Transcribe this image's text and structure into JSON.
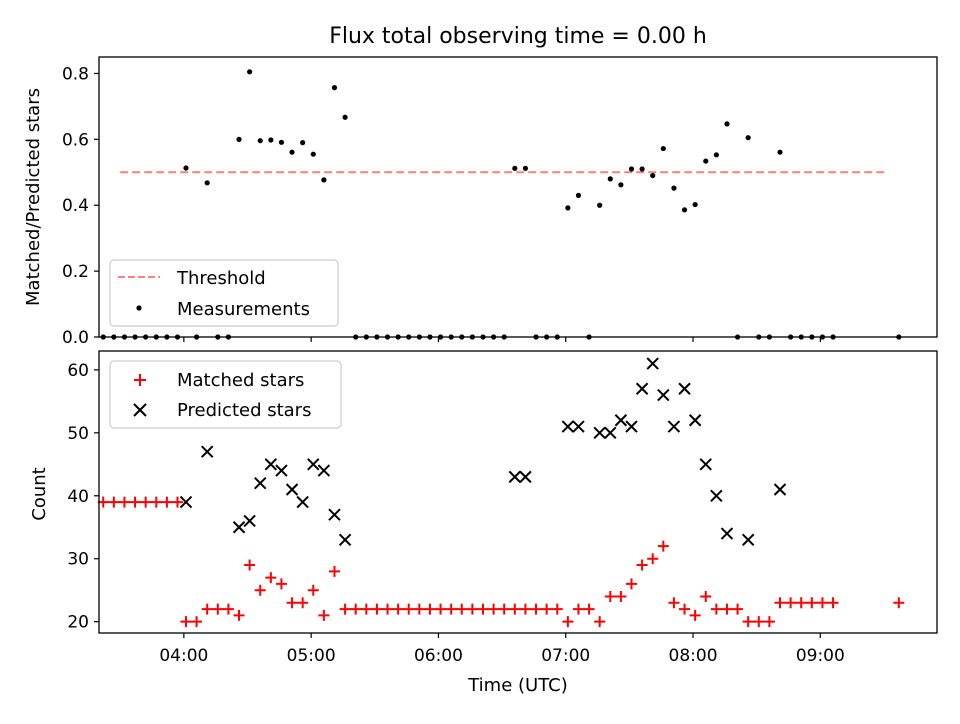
{
  "figure": {
    "title": "Flux total observing time = 0.00 h",
    "xlabel": "Time (UTC)"
  },
  "chart_data": [
    {
      "type": "scatter",
      "panel": "top",
      "ylabel": "Matched/Predicted stars",
      "xlabel": "",
      "xlim": [
        "03:20",
        "09:55"
      ],
      "ylim": [
        0,
        0.85
      ],
      "yticks": [
        0.0,
        0.2,
        0.4,
        0.6,
        0.8
      ],
      "ytick_labels": [
        "0.0",
        "0.2",
        "0.4",
        "0.6",
        "0.8"
      ],
      "xticks": [
        "04:00",
        "05:00",
        "06:00",
        "07:00",
        "08:00",
        "09:00"
      ],
      "xtick_labels": [
        "",
        "",
        "",
        "",
        "",
        ""
      ],
      "legend": {
        "position": "lower-left",
        "entries": [
          "Threshold",
          "Measurements"
        ]
      },
      "series": [
        {
          "name": "Threshold",
          "kind": "dashed-line",
          "color": "#ff7f7f",
          "x": [
            "03:30",
            "09:30"
          ],
          "y": [
            0.5,
            0.5
          ]
        },
        {
          "name": "Measurements",
          "kind": "dots",
          "color": "#000000",
          "x": [
            "03:22",
            "03:27",
            "03:32",
            "03:37",
            "03:42",
            "03:47",
            "03:52",
            "03:57",
            "04:01",
            "04:06",
            "04:11",
            "04:16",
            "04:21",
            "04:26",
            "04:31",
            "04:36",
            "04:41",
            "04:46",
            "04:51",
            "04:56",
            "05:01",
            "05:06",
            "05:11",
            "05:16",
            "05:21",
            "05:26",
            "05:31",
            "05:36",
            "05:41",
            "05:46",
            "05:51",
            "05:56",
            "06:01",
            "06:06",
            "06:11",
            "06:16",
            "06:21",
            "06:26",
            "06:31",
            "06:36",
            "06:41",
            "06:46",
            "06:51",
            "06:56",
            "07:01",
            "07:06",
            "07:11",
            "07:16",
            "07:21",
            "07:26",
            "07:31",
            "07:36",
            "07:41",
            "07:46",
            "07:51",
            "07:56",
            "08:01",
            "08:06",
            "08:11",
            "08:16",
            "08:21",
            "08:26",
            "08:31",
            "08:36",
            "08:41",
            "08:46",
            "08:51",
            "08:56",
            "09:01",
            "09:06",
            "09:37"
          ],
          "y": [
            0,
            0,
            0,
            0,
            0,
            0,
            0,
            0,
            0.513,
            0,
            0.468,
            0,
            0,
            0.6,
            0.805,
            0.596,
            0.598,
            0.591,
            0.561,
            0.59,
            0.555,
            0.477,
            0.757,
            0.667,
            0,
            0,
            0,
            0,
            0,
            0,
            0,
            0,
            0,
            0,
            0,
            0,
            0,
            0,
            0,
            0.512,
            0.512,
            0,
            0,
            0,
            0.392,
            0.43,
            0,
            0.4,
            0.48,
            0.462,
            0.51,
            0.51,
            0.49,
            0.572,
            0.452,
            0.386,
            0.402,
            0.534,
            0.553,
            0.647,
            0,
            0.605,
            0,
            0,
            0.561,
            0,
            0,
            0,
            0,
            0,
            0
          ]
        }
      ]
    },
    {
      "type": "scatter",
      "panel": "bottom",
      "ylabel": "Count",
      "xlabel": "Time (UTC)",
      "xlim": [
        "03:20",
        "09:55"
      ],
      "ylim": [
        18.2,
        63.0
      ],
      "yticks": [
        20,
        30,
        40,
        50,
        60
      ],
      "ytick_labels": [
        "20",
        "30",
        "40",
        "50",
        "60"
      ],
      "xticks": [
        "04:00",
        "05:00",
        "06:00",
        "07:00",
        "08:00",
        "09:00"
      ],
      "xtick_labels": [
        "04:00",
        "05:00",
        "06:00",
        "07:00",
        "08:00",
        "09:00"
      ],
      "legend": {
        "position": "top-left",
        "entries": [
          "Matched stars",
          "Predicted stars"
        ]
      },
      "series": [
        {
          "name": "Matched stars",
          "kind": "plus",
          "color": "#ff0000",
          "x": [
            "03:22",
            "03:27",
            "03:32",
            "03:37",
            "03:42",
            "03:47",
            "03:52",
            "03:57",
            "04:01",
            "04:06",
            "04:11",
            "04:16",
            "04:21",
            "04:26",
            "04:31",
            "04:36",
            "04:41",
            "04:46",
            "04:51",
            "04:56",
            "05:01",
            "05:06",
            "05:11",
            "05:16",
            "05:21",
            "05:26",
            "05:31",
            "05:36",
            "05:41",
            "05:46",
            "05:51",
            "05:56",
            "06:01",
            "06:06",
            "06:11",
            "06:16",
            "06:21",
            "06:26",
            "06:31",
            "06:36",
            "06:41",
            "06:46",
            "06:51",
            "06:56",
            "07:01",
            "07:06",
            "07:11",
            "07:16",
            "07:21",
            "07:26",
            "07:31",
            "07:36",
            "07:41",
            "07:46",
            "07:51",
            "07:56",
            "08:01",
            "08:06",
            "08:11",
            "08:16",
            "08:21",
            "08:26",
            "08:31",
            "08:36",
            "08:41",
            "08:46",
            "08:51",
            "08:56",
            "09:01",
            "09:06",
            "09:37"
          ],
          "y": [
            39,
            39,
            39,
            39,
            39,
            39,
            39,
            39,
            20,
            20,
            22,
            22,
            22,
            21,
            29,
            25,
            27,
            26,
            23,
            23,
            25,
            21,
            28,
            22,
            22,
            22,
            22,
            22,
            22,
            22,
            22,
            22,
            22,
            22,
            22,
            22,
            22,
            22,
            22,
            22,
            22,
            22,
            22,
            22,
            20,
            22,
            22,
            20,
            24,
            24,
            26,
            29,
            30,
            32,
            23,
            22,
            21,
            24,
            22,
            22,
            22,
            20,
            20,
            20,
            23,
            23,
            23,
            23,
            23,
            23,
            23
          ]
        },
        {
          "name": "Predicted stars",
          "kind": "x",
          "color": "#000000",
          "x": [
            "04:01",
            "04:11",
            "04:26",
            "04:31",
            "04:36",
            "04:41",
            "04:46",
            "04:51",
            "04:56",
            "05:01",
            "05:06",
            "05:11",
            "05:16",
            "06:36",
            "06:41",
            "07:01",
            "07:06",
            "07:16",
            "07:21",
            "07:26",
            "07:31",
            "07:36",
            "07:41",
            "07:46",
            "07:51",
            "07:56",
            "08:01",
            "08:06",
            "08:11",
            "08:16",
            "08:26",
            "08:41"
          ],
          "y": [
            39,
            47,
            35,
            36,
            42,
            45,
            44,
            41,
            39,
            45,
            44,
            37,
            33,
            43,
            43,
            51,
            51,
            50,
            50,
            52,
            51,
            57,
            61,
            56,
            51,
            57,
            52,
            45,
            40,
            34,
            33,
            41
          ]
        }
      ]
    }
  ]
}
